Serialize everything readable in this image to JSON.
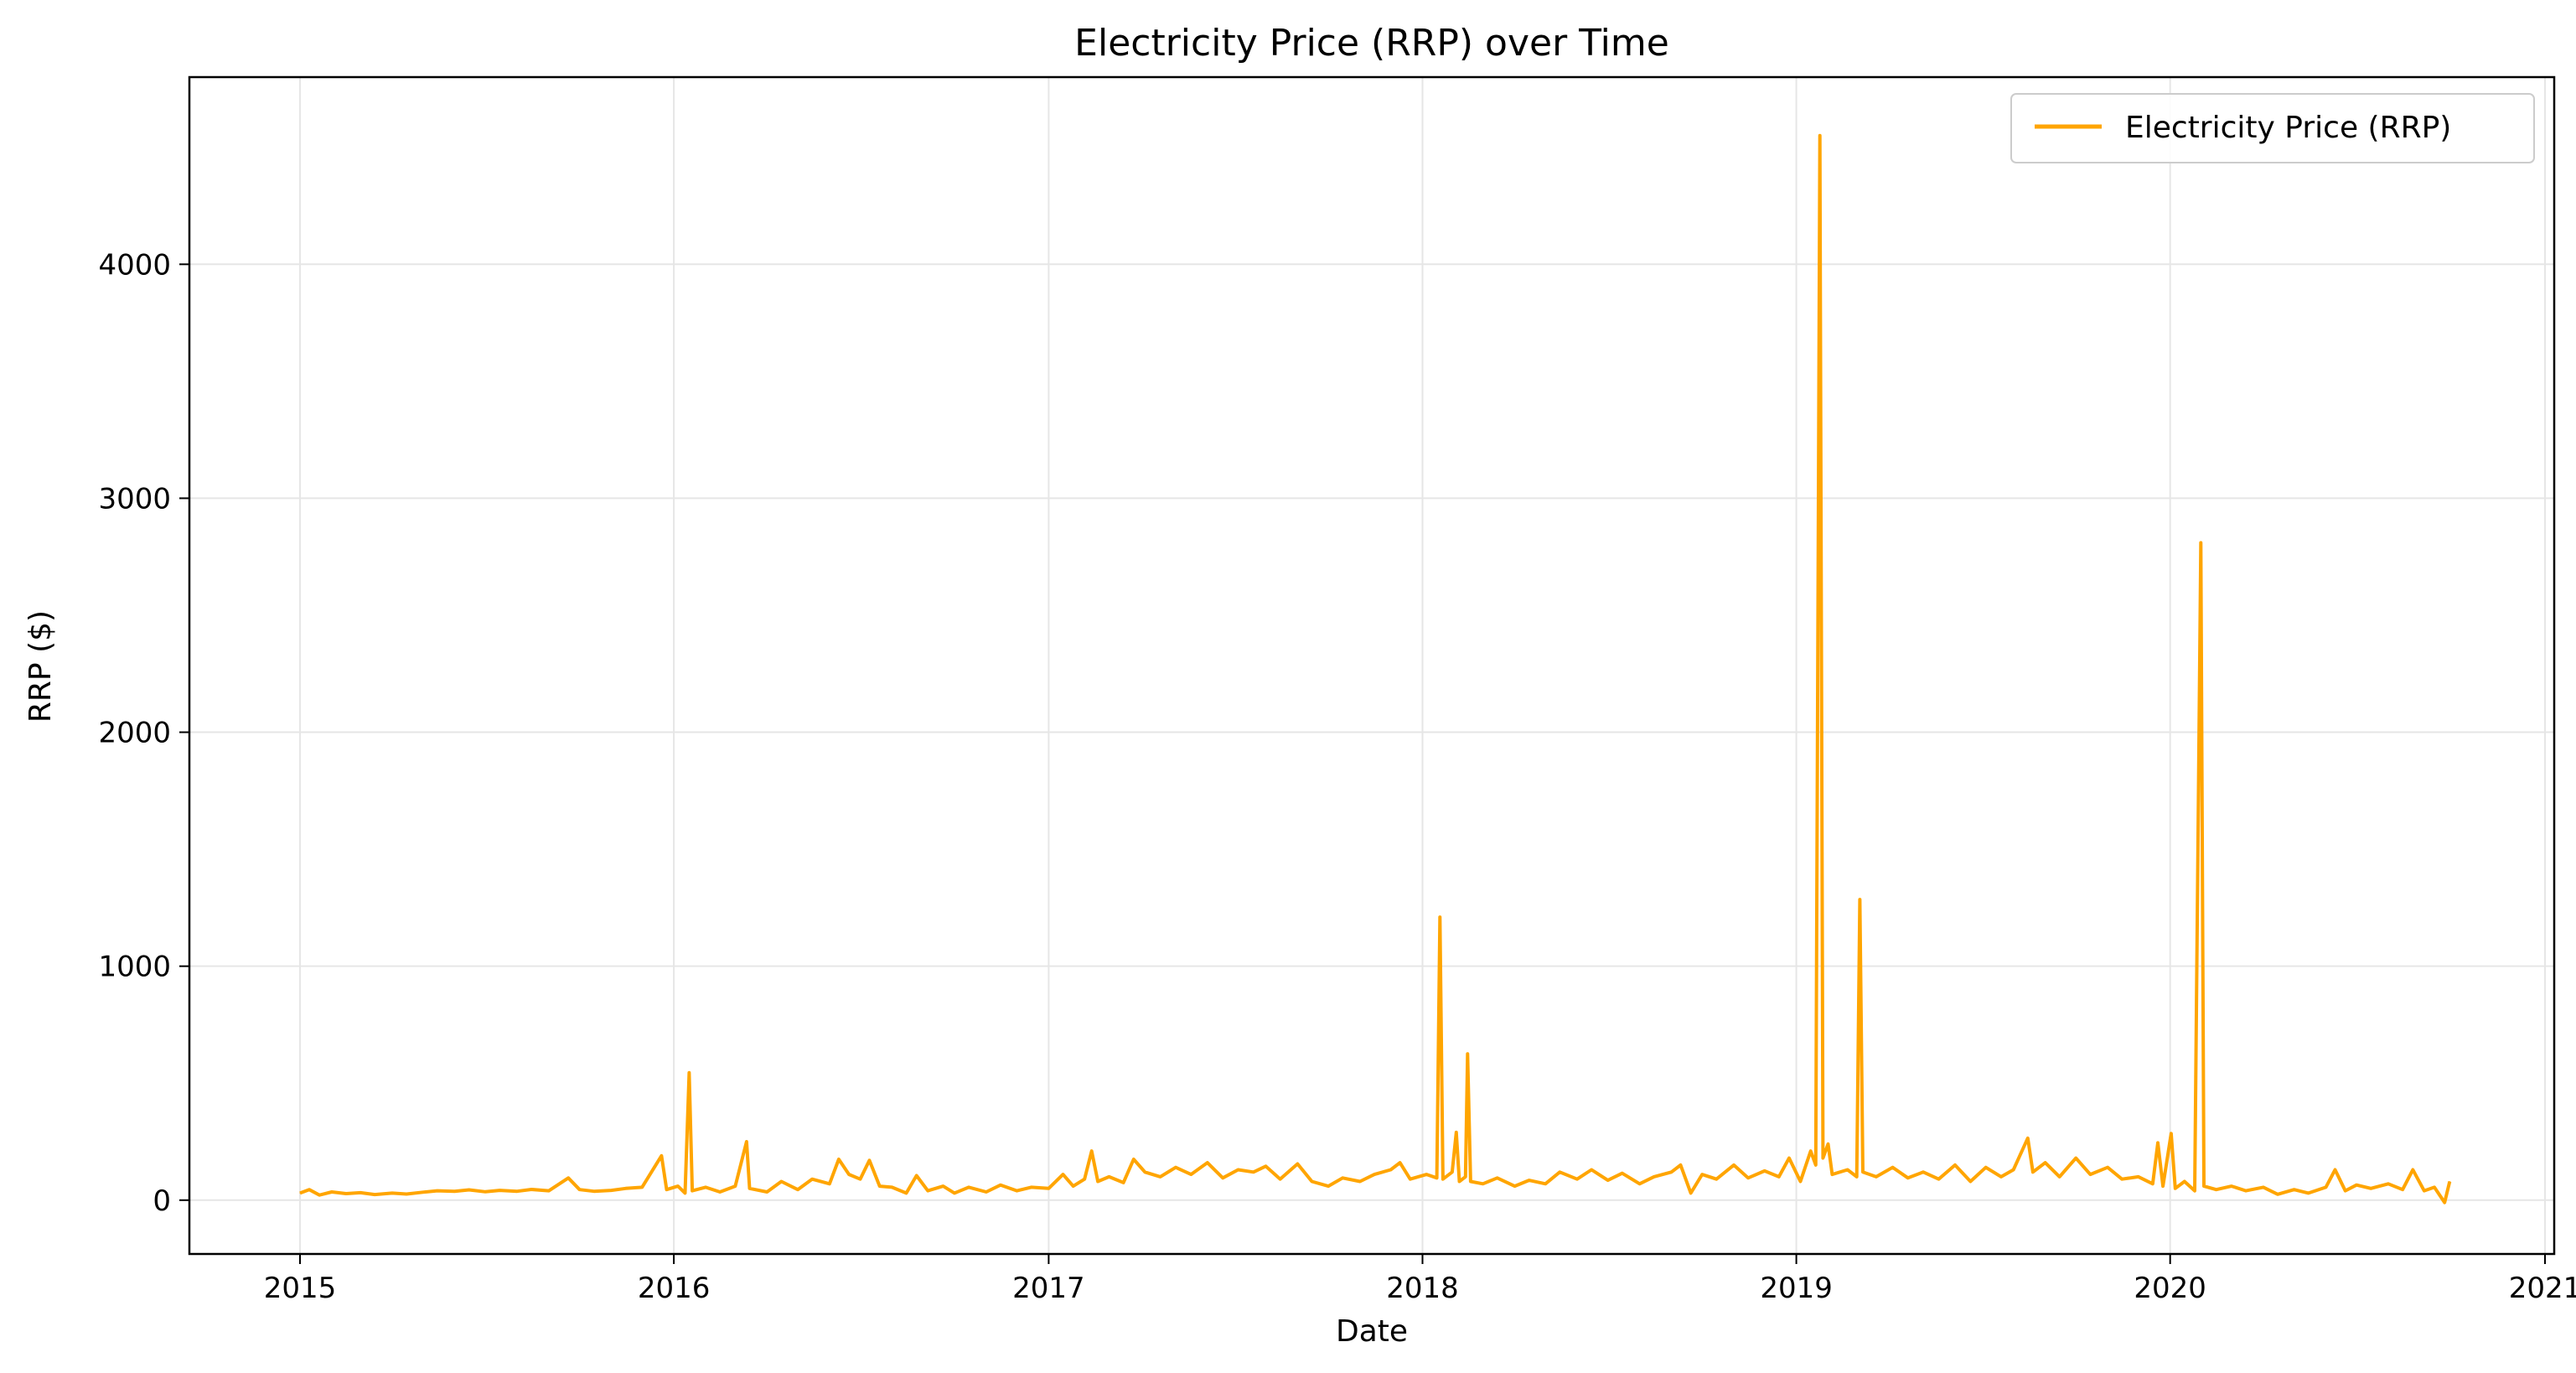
{
  "chart_data": {
    "type": "line",
    "title": "Electricity Price (RRP) over Time",
    "xlabel": "Date",
    "ylabel": "RRP ($)",
    "x_type": "date",
    "xlim": [
      "2014-09-15",
      "2021-01-10"
    ],
    "ylim": [
      -230,
      4800
    ],
    "x_ticks": [
      "2015",
      "2016",
      "2017",
      "2018",
      "2019",
      "2020",
      "2021"
    ],
    "y_ticks": [
      0,
      1000,
      2000,
      3000,
      4000
    ],
    "grid": true,
    "legend_position": "top-right",
    "series": [
      {
        "name": "Electricity Price (RRP)",
        "color": "#FFA500",
        "points": [
          [
            "2015-01-01",
            30
          ],
          [
            "2015-01-10",
            45
          ],
          [
            "2015-01-20",
            22
          ],
          [
            "2015-02-01",
            35
          ],
          [
            "2015-02-15",
            28
          ],
          [
            "2015-03-01",
            32
          ],
          [
            "2015-03-15",
            24
          ],
          [
            "2015-04-01",
            30
          ],
          [
            "2015-04-15",
            26
          ],
          [
            "2015-05-01",
            34
          ],
          [
            "2015-05-15",
            40
          ],
          [
            "2015-06-01",
            38
          ],
          [
            "2015-06-15",
            44
          ],
          [
            "2015-07-01",
            36
          ],
          [
            "2015-07-15",
            42
          ],
          [
            "2015-08-01",
            38
          ],
          [
            "2015-08-15",
            46
          ],
          [
            "2015-09-01",
            40
          ],
          [
            "2015-09-20",
            95
          ],
          [
            "2015-10-01",
            45
          ],
          [
            "2015-10-15",
            38
          ],
          [
            "2015-11-01",
            42
          ],
          [
            "2015-11-15",
            50
          ],
          [
            "2015-12-01",
            55
          ],
          [
            "2015-12-20",
            190
          ],
          [
            "2015-12-25",
            45
          ],
          [
            "2016-01-05",
            60
          ],
          [
            "2016-01-12",
            30
          ],
          [
            "2016-01-16",
            545
          ],
          [
            "2016-01-19",
            40
          ],
          [
            "2016-02-01",
            55
          ],
          [
            "2016-02-15",
            35
          ],
          [
            "2016-03-01",
            60
          ],
          [
            "2016-03-12",
            250
          ],
          [
            "2016-03-15",
            50
          ],
          [
            "2016-04-01",
            35
          ],
          [
            "2016-04-15",
            80
          ],
          [
            "2016-05-01",
            45
          ],
          [
            "2016-05-15",
            90
          ],
          [
            "2016-06-01",
            70
          ],
          [
            "2016-06-10",
            175
          ],
          [
            "2016-06-20",
            110
          ],
          [
            "2016-07-01",
            90
          ],
          [
            "2016-07-10",
            170
          ],
          [
            "2016-07-20",
            60
          ],
          [
            "2016-08-01",
            55
          ],
          [
            "2016-08-15",
            30
          ],
          [
            "2016-08-25",
            105
          ],
          [
            "2016-09-05",
            40
          ],
          [
            "2016-09-20",
            60
          ],
          [
            "2016-10-01",
            30
          ],
          [
            "2016-10-15",
            55
          ],
          [
            "2016-11-01",
            35
          ],
          [
            "2016-11-15",
            65
          ],
          [
            "2016-12-01",
            40
          ],
          [
            "2016-12-15",
            55
          ],
          [
            "2017-01-01",
            50
          ],
          [
            "2017-01-15",
            110
          ],
          [
            "2017-01-25",
            60
          ],
          [
            "2017-02-05",
            90
          ],
          [
            "2017-02-12",
            210
          ],
          [
            "2017-02-18",
            80
          ],
          [
            "2017-03-01",
            100
          ],
          [
            "2017-03-15",
            75
          ],
          [
            "2017-03-25",
            175
          ],
          [
            "2017-04-05",
            120
          ],
          [
            "2017-04-20",
            100
          ],
          [
            "2017-05-05",
            140
          ],
          [
            "2017-05-20",
            110
          ],
          [
            "2017-06-05",
            160
          ],
          [
            "2017-06-20",
            95
          ],
          [
            "2017-07-05",
            130
          ],
          [
            "2017-07-20",
            120
          ],
          [
            "2017-08-01",
            145
          ],
          [
            "2017-08-15",
            90
          ],
          [
            "2017-09-01",
            155
          ],
          [
            "2017-09-15",
            80
          ],
          [
            "2017-10-01",
            60
          ],
          [
            "2017-10-15",
            95
          ],
          [
            "2017-11-01",
            80
          ],
          [
            "2017-11-15",
            110
          ],
          [
            "2017-12-01",
            130
          ],
          [
            "2017-12-10",
            160
          ],
          [
            "2017-12-20",
            90
          ],
          [
            "2018-01-05",
            110
          ],
          [
            "2018-01-15",
            95
          ],
          [
            "2018-01-18",
            1210
          ],
          [
            "2018-01-21",
            90
          ],
          [
            "2018-01-30",
            120
          ],
          [
            "2018-02-03",
            290
          ],
          [
            "2018-02-06",
            80
          ],
          [
            "2018-02-12",
            100
          ],
          [
            "2018-02-14",
            625
          ],
          [
            "2018-02-17",
            80
          ],
          [
            "2018-03-01",
            70
          ],
          [
            "2018-03-15",
            95
          ],
          [
            "2018-04-01",
            60
          ],
          [
            "2018-04-15",
            85
          ],
          [
            "2018-05-01",
            70
          ],
          [
            "2018-05-15",
            120
          ],
          [
            "2018-06-01",
            90
          ],
          [
            "2018-06-15",
            130
          ],
          [
            "2018-07-01",
            85
          ],
          [
            "2018-07-15",
            115
          ],
          [
            "2018-08-01",
            70
          ],
          [
            "2018-08-15",
            100
          ],
          [
            "2018-09-01",
            120
          ],
          [
            "2018-09-10",
            150
          ],
          [
            "2018-09-20",
            30
          ],
          [
            "2018-10-01",
            110
          ],
          [
            "2018-10-15",
            90
          ],
          [
            "2018-11-01",
            150
          ],
          [
            "2018-11-15",
            95
          ],
          [
            "2018-12-01",
            125
          ],
          [
            "2018-12-15",
            100
          ],
          [
            "2018-12-25",
            180
          ],
          [
            "2019-01-05",
            80
          ],
          [
            "2019-01-15",
            210
          ],
          [
            "2019-01-20",
            150
          ],
          [
            "2019-01-24",
            4550
          ],
          [
            "2019-01-27",
            180
          ],
          [
            "2019-02-01",
            240
          ],
          [
            "2019-02-05",
            110
          ],
          [
            "2019-02-20",
            130
          ],
          [
            "2019-03-01",
            100
          ],
          [
            "2019-03-04",
            1285
          ],
          [
            "2019-03-07",
            120
          ],
          [
            "2019-03-20",
            100
          ],
          [
            "2019-04-05",
            140
          ],
          [
            "2019-04-20",
            95
          ],
          [
            "2019-05-05",
            120
          ],
          [
            "2019-05-20",
            90
          ],
          [
            "2019-06-05",
            150
          ],
          [
            "2019-06-20",
            80
          ],
          [
            "2019-07-05",
            140
          ],
          [
            "2019-07-20",
            100
          ],
          [
            "2019-08-01",
            130
          ],
          [
            "2019-08-15",
            265
          ],
          [
            "2019-08-20",
            120
          ],
          [
            "2019-09-01",
            160
          ],
          [
            "2019-09-15",
            100
          ],
          [
            "2019-10-01",
            180
          ],
          [
            "2019-10-15",
            110
          ],
          [
            "2019-11-01",
            140
          ],
          [
            "2019-11-15",
            90
          ],
          [
            "2019-12-01",
            100
          ],
          [
            "2019-12-15",
            70
          ],
          [
            "2019-12-20",
            245
          ],
          [
            "2019-12-25",
            60
          ],
          [
            "2020-01-02",
            285
          ],
          [
            "2020-01-06",
            50
          ],
          [
            "2020-01-15",
            80
          ],
          [
            "2020-01-25",
            40
          ],
          [
            "2020-01-31",
            2810
          ],
          [
            "2020-02-03",
            60
          ],
          [
            "2020-02-15",
            45
          ],
          [
            "2020-03-01",
            60
          ],
          [
            "2020-03-15",
            40
          ],
          [
            "2020-04-01",
            55
          ],
          [
            "2020-04-15",
            25
          ],
          [
            "2020-05-01",
            45
          ],
          [
            "2020-05-15",
            30
          ],
          [
            "2020-06-01",
            55
          ],
          [
            "2020-06-10",
            130
          ],
          [
            "2020-06-20",
            40
          ],
          [
            "2020-07-01",
            65
          ],
          [
            "2020-07-15",
            50
          ],
          [
            "2020-08-01",
            70
          ],
          [
            "2020-08-15",
            45
          ],
          [
            "2020-08-25",
            130
          ],
          [
            "2020-09-05",
            40
          ],
          [
            "2020-09-15",
            55
          ],
          [
            "2020-09-25",
            -10
          ],
          [
            "2020-09-30",
            80
          ]
        ]
      }
    ]
  }
}
